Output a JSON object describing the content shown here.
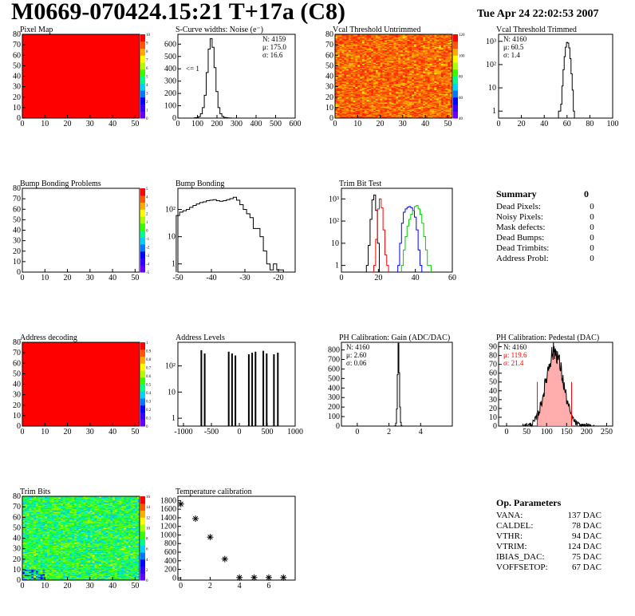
{
  "header": {
    "title": "M0669-070424.15:21 T+17a (C8)",
    "date": "Tue Apr 24 22:02:53 2007"
  },
  "colors": {
    "red": "#ff0000",
    "green": "#00cc00",
    "blue": "#0000ff",
    "black": "#000000",
    "palette": [
      "#6600ff",
      "#3300ff",
      "#0000ff",
      "#0077ff",
      "#00d0ff",
      "#00ff88",
      "#33ff00",
      "#aaff00",
      "#ffff00",
      "#ffaa00",
      "#ff5500",
      "#ff0000"
    ]
  },
  "chart_data": [
    {
      "id": "pixel_map",
      "type": "heatmap",
      "title": "Pixel Map",
      "xlim": [
        0,
        52
      ],
      "ylim": [
        0,
        80
      ],
      "xticks": [
        "0",
        "10",
        "20",
        "30",
        "40",
        "50"
      ],
      "yticks": [
        "0",
        "10",
        "20",
        "30",
        "40",
        "50",
        "60",
        "70",
        "80"
      ],
      "fill": "uniform-max",
      "zticks": [
        "0",
        "1",
        "2",
        "3",
        "4",
        "5",
        "6",
        "7",
        "8",
        "9",
        "10"
      ]
    },
    {
      "id": "scurve_widths",
      "type": "histogram",
      "title": "S-Curve widths: Noise (e⁻)",
      "xlim": [
        0,
        600
      ],
      "ylim": [
        0,
        680
      ],
      "xticks": [
        "0",
        "100",
        "200",
        "300",
        "400",
        "500",
        "600"
      ],
      "yticks": [
        "0",
        "100",
        "200",
        "300",
        "400",
        "500",
        "600"
      ],
      "bin_width": 10,
      "bins_x": [
        90,
        100,
        110,
        120,
        130,
        140,
        150,
        160,
        170,
        180,
        190,
        200,
        210,
        220,
        230,
        240,
        250,
        260,
        270
      ],
      "bins_y": [
        3,
        5,
        12,
        35,
        85,
        185,
        370,
        560,
        645,
        575,
        410,
        215,
        85,
        35,
        14,
        6,
        3,
        2,
        1
      ],
      "stats": {
        "n": "N: 4159",
        "mean": "μ: 175.0",
        "sigma": "σ: 16.6"
      },
      "annotation": "<= 1"
    },
    {
      "id": "vcal_untrimmed",
      "type": "heatmap",
      "title": "Vcal Threshold Untrimmed",
      "xlim": [
        0,
        52
      ],
      "ylim": [
        0,
        80
      ],
      "xticks": [
        "0",
        "10",
        "20",
        "30",
        "40",
        "50"
      ],
      "yticks": [
        "0",
        "10",
        "20",
        "30",
        "40",
        "50",
        "60",
        "70",
        "80"
      ],
      "fill": "noisy-warm",
      "zticks": [
        "40",
        "60",
        "80",
        "100",
        "120"
      ]
    },
    {
      "id": "vcal_trimmed",
      "type": "histogram",
      "title": "Vcal Threshold Trimmed",
      "xlim": [
        0,
        100
      ],
      "ylim_log": [
        0.5,
        2000
      ],
      "log_y": true,
      "xticks": [
        "0",
        "20",
        "40",
        "60",
        "80",
        "100"
      ],
      "yticks": [
        "1",
        "10",
        "10²",
        "10³"
      ],
      "bin_width": 1,
      "bins_x": [
        53,
        54,
        55,
        56,
        57,
        58,
        59,
        60,
        61,
        62,
        63,
        64,
        65,
        66
      ],
      "bins_y": [
        1,
        1,
        2,
        12,
        60,
        220,
        560,
        900,
        850,
        520,
        180,
        40,
        8,
        1
      ],
      "stats": {
        "n": "N: 4160",
        "mean": "μ: 60.5",
        "sigma": "σ:  1.4"
      }
    },
    {
      "id": "bump_problems",
      "type": "heatmap",
      "title": "Bump Bonding Problems",
      "xlim": [
        0,
        52
      ],
      "ylim": [
        0,
        80
      ],
      "xticks": [
        "0",
        "10",
        "20",
        "30",
        "40",
        "50"
      ],
      "yticks": [
        "0",
        "10",
        "20",
        "30",
        "40",
        "50",
        "60",
        "70",
        "80"
      ],
      "fill": "empty",
      "zticks": [
        "-5",
        "-4",
        "-3",
        "-2",
        "-1",
        "0",
        "1",
        "2",
        "3",
        "4",
        "5"
      ]
    },
    {
      "id": "bump_bonding",
      "type": "histogram",
      "title": "Bump Bonding",
      "xlim": [
        -50,
        -15
      ],
      "ylim_log": [
        0.5,
        600
      ],
      "log_y": true,
      "xticks": [
        "-50",
        "-40",
        "-30",
        "-20"
      ],
      "yticks": [
        "1",
        "10",
        "10²"
      ],
      "bin_width": 1,
      "bins_x": [
        -50,
        -49,
        -48,
        -47,
        -46,
        -45,
        -44,
        -43,
        -42,
        -41,
        -40,
        -39,
        -38,
        -37,
        -36,
        -35,
        -34,
        -33,
        -32,
        -31,
        -30,
        -29,
        -28,
        -27,
        -26,
        -25,
        -24,
        -23,
        -22,
        -21,
        -20,
        -19
      ],
      "bins_y": [
        60,
        80,
        90,
        100,
        120,
        140,
        160,
        180,
        190,
        210,
        220,
        230,
        210,
        200,
        210,
        230,
        250,
        280,
        220,
        150,
        100,
        70,
        50,
        20,
        20,
        10,
        3,
        1,
        0.6,
        1,
        0.6,
        0.6
      ]
    },
    {
      "id": "trim_bit_test",
      "type": "histogram",
      "title": "Trim Bit Test",
      "xlim": [
        0,
        60
      ],
      "ylim_log": [
        0.5,
        3000
      ],
      "log_y": true,
      "xticks": [
        "0",
        "20",
        "40",
        "60"
      ],
      "yticks": [
        "1",
        "10",
        "10²",
        "10³"
      ],
      "bin_width": 1,
      "series": [
        {
          "color": "#000000",
          "bins_x": [
            14,
            15,
            16,
            17,
            18,
            19,
            20
          ],
          "bins_y": [
            1,
            8,
            120,
            900,
            1500,
            300,
            10
          ]
        },
        {
          "color": "#ff0000",
          "bins_x": [
            18,
            19,
            20,
            21,
            22,
            23,
            24,
            25
          ],
          "bins_y": [
            1,
            15,
            350,
            1000,
            400,
            40,
            3,
            1
          ]
        },
        {
          "color": "#0000ff",
          "bins_x": [
            31,
            32,
            33,
            34,
            35,
            36,
            37,
            38,
            39,
            40,
            41,
            42,
            43
          ],
          "bins_y": [
            1,
            10,
            80,
            250,
            350,
            420,
            450,
            400,
            300,
            150,
            40,
            5,
            1
          ]
        },
        {
          "color": "#00cc00",
          "bins_x": [
            33,
            34,
            35,
            36,
            37,
            38,
            39,
            40,
            41,
            42,
            43,
            44,
            45,
            46,
            47,
            48
          ],
          "bins_y": [
            1,
            5,
            20,
            60,
            120,
            200,
            300,
            450,
            500,
            350,
            200,
            80,
            20,
            5,
            1,
            1
          ]
        }
      ]
    },
    {
      "id": "address_decoding",
      "type": "heatmap",
      "title": "Address decoding",
      "xlim": [
        0,
        52
      ],
      "ylim": [
        0,
        80
      ],
      "xticks": [
        "0",
        "10",
        "20",
        "30",
        "40",
        "50"
      ],
      "yticks": [
        "0",
        "10",
        "20",
        "30",
        "40",
        "50",
        "60",
        "70",
        "80"
      ],
      "fill": "uniform-max",
      "zticks": [
        "0",
        "0.1",
        "0.2",
        "0.3",
        "0.4",
        "0.5",
        "0.6",
        "0.7",
        "0.8",
        "0.9",
        "1"
      ]
    },
    {
      "id": "address_levels",
      "type": "histogram",
      "title": "Address Levels",
      "xlim": [
        -1100,
        1000
      ],
      "ylim_log": [
        0.5,
        800
      ],
      "log_y": true,
      "xticks": [
        "-1000",
        "-500",
        "0",
        "500",
        "1000"
      ],
      "yticks": [
        "1",
        "10",
        "10²"
      ],
      "peaks_x": [
        -680,
        -620,
        -190,
        -130,
        -70,
        170,
        230,
        290,
        430,
        490,
        620,
        690
      ],
      "peaks_y": [
        400,
        300,
        350,
        300,
        250,
        280,
        320,
        350,
        380,
        300,
        280,
        320
      ]
    },
    {
      "id": "ph_gain",
      "type": "histogram",
      "title": "PH Calibration: Gain (ADC/DAC)",
      "xlim": [
        -1,
        6
      ],
      "ylim": [
        0,
        880
      ],
      "xticks": [
        "0",
        "2",
        "4"
      ],
      "yticks": [
        "0",
        "100",
        "200",
        "300",
        "400",
        "500",
        "600",
        "700",
        "800"
      ],
      "bin_width": 0.05,
      "bins_x": [
        2.4,
        2.45,
        2.5,
        2.55,
        2.6,
        2.65,
        2.7,
        2.75,
        2.8
      ],
      "bins_y": [
        5,
        30,
        180,
        540,
        870,
        560,
        200,
        40,
        5
      ],
      "stats": {
        "n": "N: 4160",
        "mean": "μ: 2.60",
        "sigma": "σ: 0.06"
      }
    },
    {
      "id": "ph_pedestal",
      "type": "histogram",
      "title": "PH Calibration: Pedestal (DAC)",
      "xlim": [
        -20,
        265
      ],
      "ylim": [
        0,
        95
      ],
      "xticks": [
        "0",
        "50",
        "100",
        "150",
        "200",
        "250"
      ],
      "yticks": [
        "0",
        "10",
        "20",
        "30",
        "40",
        "50",
        "60",
        "70",
        "80",
        "90"
      ],
      "mean": 119.6,
      "sigma": 21.4,
      "peak": 85,
      "fill_range": [
        76.8,
        162.4
      ],
      "stats": {
        "n": "N: 4160",
        "mean": "μ: 119.6",
        "sigma": "σ: 21.4"
      }
    },
    {
      "id": "trim_bits",
      "type": "heatmap",
      "title": "Trim Bits",
      "xlim": [
        0,
        52
      ],
      "ylim": [
        0,
        80
      ],
      "xticks": [
        "0",
        "10",
        "20",
        "30",
        "40",
        "50"
      ],
      "yticks": [
        "0",
        "10",
        "20",
        "30",
        "40",
        "50",
        "60",
        "70",
        "80"
      ],
      "fill": "noisy-cool",
      "zticks": [
        "0",
        "2",
        "4",
        "6",
        "8",
        "10",
        "12",
        "14",
        "16"
      ]
    },
    {
      "id": "temperature_calibration",
      "type": "scatter",
      "title": "Temperature calibration",
      "xlim": [
        -0.2,
        7.8
      ],
      "ylim": [
        -50,
        1900
      ],
      "xticks": [
        "0",
        "2",
        "4",
        "6"
      ],
      "yticks": [
        "0",
        "200",
        "400",
        "600",
        "800",
        "1000",
        "1200",
        "1400",
        "1600",
        "1800"
      ],
      "x": [
        0,
        1,
        2,
        3,
        4,
        5,
        6,
        7
      ],
      "y": [
        1720,
        1380,
        950,
        440,
        10,
        10,
        10,
        10
      ]
    }
  ],
  "summary": {
    "title": "Summary",
    "total": "0",
    "rows": [
      {
        "label": "Dead Pixels:",
        "value": "0"
      },
      {
        "label": "Noisy Pixels:",
        "value": "0"
      },
      {
        "label": "Mask defects:",
        "value": "0"
      },
      {
        "label": "Dead Bumps:",
        "value": "0"
      },
      {
        "label": "Dead Trimbits:",
        "value": "0"
      },
      {
        "label": "Address Probl:",
        "value": "0"
      }
    ]
  },
  "op_params": {
    "title": "Op. Parameters",
    "rows": [
      {
        "label": "VANA:",
        "value": "137 DAC"
      },
      {
        "label": "CALDEL:",
        "value": "78 DAC"
      },
      {
        "label": "VTHR:",
        "value": "94 DAC"
      },
      {
        "label": "VTRIM:",
        "value": "124 DAC"
      },
      {
        "label": "IBIAS_DAC:",
        "value": "75 DAC"
      },
      {
        "label": "VOFFSETOP:",
        "value": "67 DAC"
      }
    ]
  }
}
